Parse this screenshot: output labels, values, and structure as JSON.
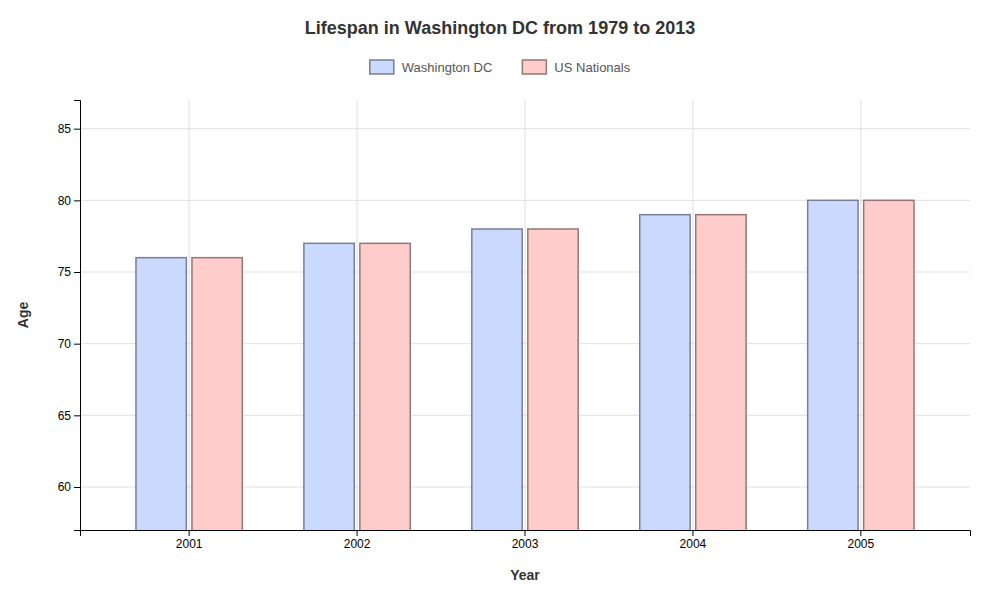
{
  "chart_data": {
    "type": "bar",
    "title": "Lifespan in Washington DC from 1979 to 2013",
    "xlabel": "Year",
    "ylabel": "Age",
    "categories": [
      "2001",
      "2002",
      "2003",
      "2004",
      "2005"
    ],
    "series": [
      {
        "name": "Washington DC",
        "color": "#ccd9ff",
        "values": [
          76.0,
          77.0,
          78.0,
          79.0,
          80.0
        ]
      },
      {
        "name": "US Nationals",
        "color": "#ffcccc",
        "values": [
          76.0,
          77.0,
          78.0,
          79.0,
          80.0
        ]
      }
    ],
    "ylim": [
      57,
      87
    ],
    "yticks": [
      60,
      65,
      70,
      75,
      80,
      85
    ],
    "grid": true,
    "legend": "top"
  }
}
